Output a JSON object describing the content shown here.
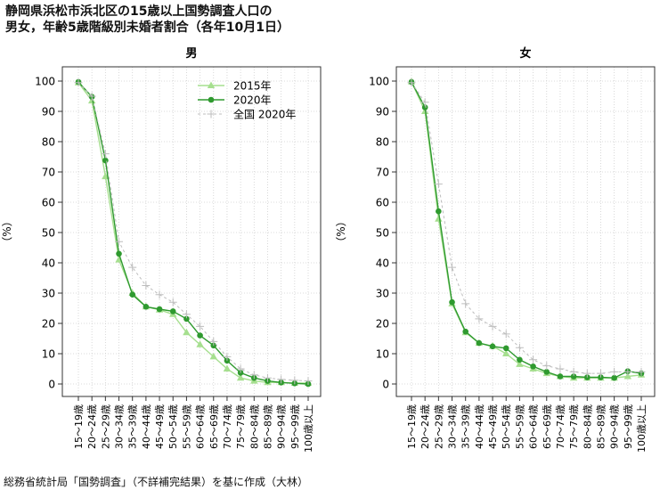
{
  "title_lines": [
    "静岡県浜松市浜北区の15歳以上国勢調査人口の",
    "男女，年齢5歳階級別未婚者割合（各年10月1日）"
  ],
  "footer": "総務省統計局「国勢調査」（不詳補完結果）を基に作成（大林）",
  "colors": {
    "s2015": "#a6df8f",
    "s2020": "#2f9a2f",
    "national": "#bdbdbd"
  },
  "chart_data": [
    {
      "type": "line",
      "title": "男",
      "ylabel": "（%）",
      "ylim": [
        0,
        100
      ],
      "yticks": [
        0,
        10,
        20,
        30,
        40,
        50,
        60,
        70,
        80,
        90,
        100
      ],
      "grid": true,
      "legend_position": "top-right",
      "categories": [
        "15～19歳",
        "20～24歳",
        "25～29歳",
        "30～34歳",
        "35～39歳",
        "40～44歳",
        "45～49歳",
        "50～54歳",
        "55～59歳",
        "60～64歳",
        "65～69歳",
        "70～74歳",
        "75～79歳",
        "80～84歳",
        "85～89歳",
        "90～94歳",
        "95～99歳",
        "100歳以上"
      ],
      "series": [
        {
          "name": "2015年",
          "values": [
            99.5,
            93.5,
            68.5,
            41,
            30,
            25.5,
            24.5,
            23,
            17,
            13,
            9,
            5,
            2,
            1,
            0.5,
            0.5,
            0.3,
            0.3
          ]
        },
        {
          "name": "2020年",
          "values": [
            99.7,
            94.8,
            73.8,
            43,
            29.5,
            25.5,
            24.7,
            24,
            21.5,
            16,
            12.7,
            7.7,
            3.7,
            2,
            1,
            0.5,
            0.2,
            0
          ]
        },
        {
          "name": "全国 2020年",
          "values": [
            99.5,
            95,
            76,
            47,
            38.5,
            32.5,
            29.5,
            27,
            23,
            19,
            14,
            9,
            5,
            3,
            2,
            1.5,
            1.2,
            1
          ]
        }
      ]
    },
    {
      "type": "line",
      "title": "女",
      "ylabel": "（%）",
      "ylim": [
        0,
        100
      ],
      "yticks": [
        0,
        10,
        20,
        30,
        40,
        50,
        60,
        70,
        80,
        90,
        100
      ],
      "grid": true,
      "categories": [
        "15～19歳",
        "20～24歳",
        "25～29歳",
        "30～34歳",
        "35～39歳",
        "40～44歳",
        "45～49歳",
        "50～54歳",
        "55～59歳",
        "60～64歳",
        "65～69歳",
        "70～74歳",
        "75～79歳",
        "80～84歳",
        "85～89歳",
        "90～94歳",
        "95～99歳",
        "100歳以上"
      ],
      "series": [
        {
          "name": "2015年",
          "values": [
            99.8,
            90,
            54.5,
            26.5,
            17,
            13.5,
            12.5,
            10,
            6.5,
            5,
            3.5,
            2.5,
            2,
            2,
            2,
            2,
            2.5,
            3
          ]
        },
        {
          "name": "2020年",
          "values": [
            99.7,
            91.3,
            57,
            27,
            17.3,
            13.5,
            12.4,
            11.8,
            8,
            5.8,
            4,
            2.5,
            2.5,
            2.2,
            2.2,
            2,
            4.2,
            3.5
          ]
        },
        {
          "name": "全国 2020年",
          "values": [
            99.5,
            93,
            66,
            38.5,
            26.5,
            21.5,
            19,
            16.5,
            12,
            8,
            6,
            5,
            4,
            3.5,
            3.5,
            4,
            4,
            4
          ]
        }
      ]
    }
  ]
}
